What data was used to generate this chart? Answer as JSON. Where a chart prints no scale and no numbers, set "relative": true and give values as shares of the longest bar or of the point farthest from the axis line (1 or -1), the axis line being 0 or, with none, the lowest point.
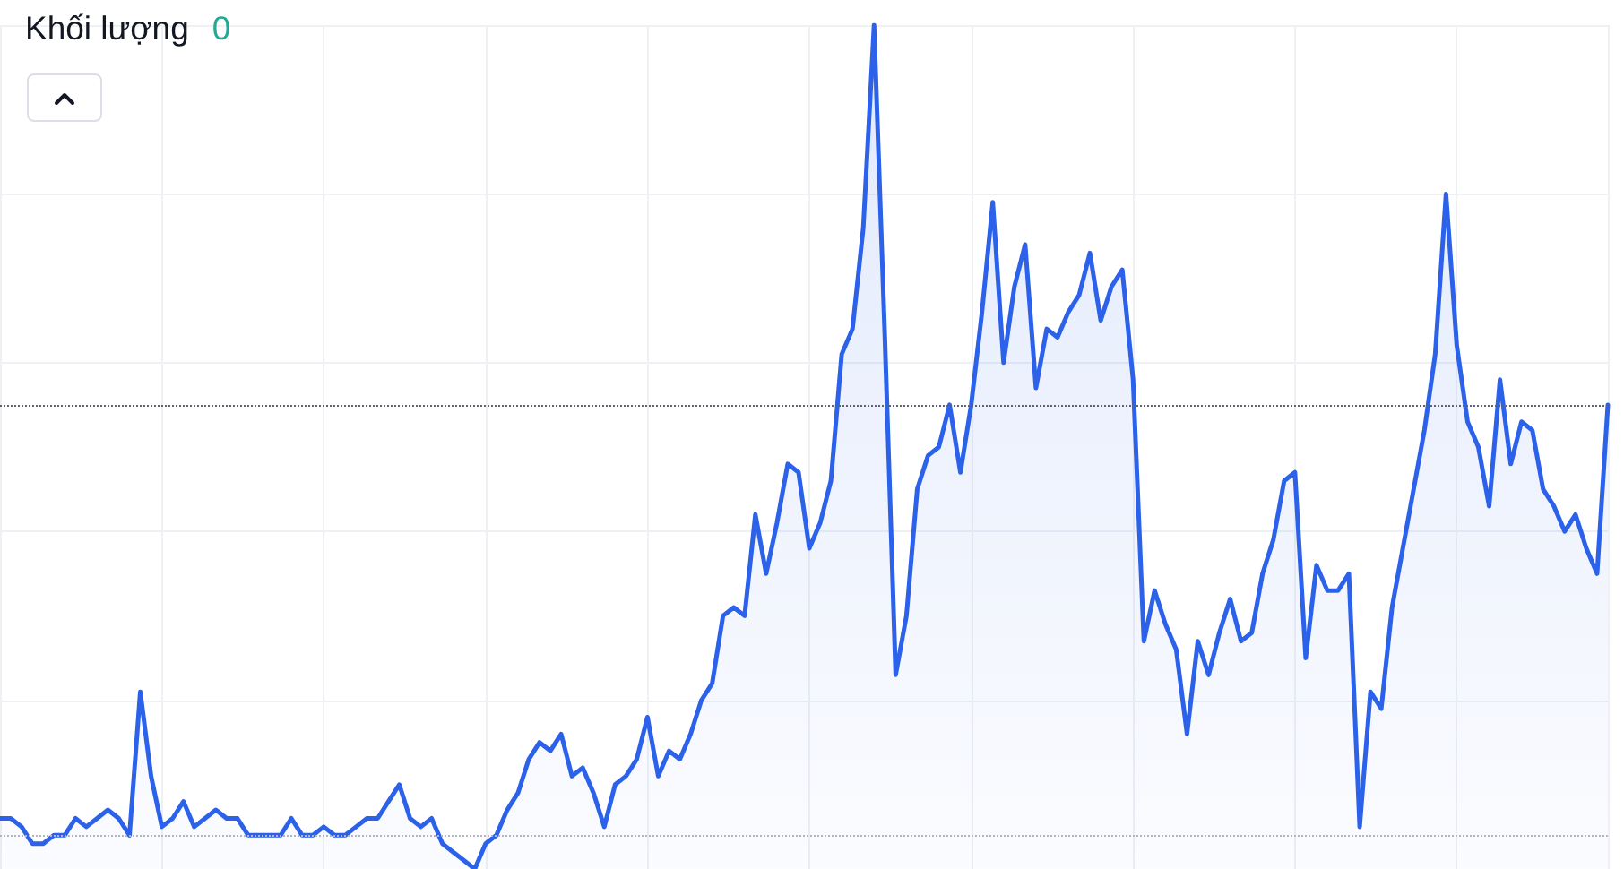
{
  "chart_data": {
    "type": "area",
    "relative": true,
    "categories": [
      null,
      null,
      null,
      null,
      null,
      null,
      null,
      null,
      null,
      null,
      null,
      null,
      null,
      null,
      null,
      null,
      null,
      null,
      null,
      null,
      null,
      null,
      null,
      null,
      null,
      null,
      null,
      null,
      null,
      null,
      null,
      null,
      null,
      null,
      null,
      null,
      null,
      null,
      null,
      null,
      null,
      null,
      null,
      null,
      null,
      null,
      null,
      null,
      null,
      null,
      null,
      null,
      null,
      null,
      null,
      null,
      null,
      null,
      null,
      null,
      null,
      null,
      null,
      null,
      null,
      null,
      null,
      null,
      null,
      null,
      null,
      null,
      null,
      null,
      null,
      null,
      null,
      null,
      null,
      null,
      null,
      null,
      null,
      null,
      null,
      null,
      null,
      null,
      null,
      null,
      null,
      null,
      null,
      null,
      null,
      null,
      null,
      null,
      null,
      null,
      null,
      null,
      null,
      null,
      null,
      null,
      null,
      null,
      null,
      null,
      null,
      null,
      null,
      null,
      null,
      null,
      null,
      null,
      null,
      null,
      null,
      null,
      null,
      null,
      null,
      null,
      null,
      null,
      null,
      null,
      null,
      null,
      null,
      null,
      null,
      null,
      null,
      null,
      null,
      null,
      null,
      null,
      null,
      null,
      null,
      null,
      null,
      null,
      null,
      null
    ],
    "values": [
      0.06,
      0.06,
      0.05,
      0.03,
      0.03,
      0.04,
      0.04,
      0.06,
      0.05,
      0.06,
      0.07,
      0.06,
      0.04,
      0.21,
      0.11,
      0.05,
      0.06,
      0.08,
      0.05,
      0.06,
      0.07,
      0.06,
      0.06,
      0.04,
      0.04,
      0.04,
      0.04,
      0.06,
      0.04,
      0.04,
      0.05,
      0.04,
      0.04,
      0.05,
      0.06,
      0.06,
      0.08,
      0.1,
      0.06,
      0.05,
      0.06,
      0.03,
      0.02,
      0.01,
      0,
      0.03,
      0.04,
      0.07,
      0.09,
      0.13,
      0.15,
      0.14,
      0.16,
      0.11,
      0.12,
      0.09,
      0.05,
      0.1,
      0.11,
      0.13,
      0.18,
      0.11,
      0.14,
      0.13,
      0.16,
      0.2,
      0.22,
      0.3,
      0.31,
      0.3,
      0.42,
      0.35,
      0.41,
      0.48,
      0.47,
      0.38,
      0.41,
      0.46,
      0.61,
      0.64,
      0.76,
      1,
      0.63,
      0.23,
      0.3,
      0.45,
      0.49,
      0.5,
      0.55,
      0.47,
      0.55,
      0.66,
      0.79,
      0.6,
      0.69,
      0.74,
      0.57,
      0.64,
      0.63,
      0.66,
      0.68,
      0.73,
      0.65,
      0.69,
      0.71,
      0.58,
      0.27,
      0.33,
      0.29,
      0.26,
      0.16,
      0.27,
      0.23,
      0.28,
      0.32,
      0.27,
      0.28,
      0.35,
      0.39,
      0.46,
      0.47,
      0.25,
      0.36,
      0.33,
      0.33,
      0.35,
      0.05,
      0.21,
      0.19,
      0.31,
      0.38,
      0.45,
      0.52,
      0.61,
      0.8,
      0.62,
      0.53,
      0.5,
      0.43,
      0.58,
      0.48,
      0.53,
      0.52,
      0.45,
      0.43,
      0.4,
      0.42,
      0.38,
      0.35,
      0.55
    ],
    "color": "#2c62ea",
    "grid": true,
    "line_style": "solid",
    "ref_lines": [
      {
        "axis": "y",
        "value": 0.55,
        "color": "#5d6273",
        "line_style": "dotted"
      },
      {
        "axis": "y",
        "value": 0.04,
        "color": "#b2b5be",
        "line_style": "dotted"
      }
    ],
    "annotations": [
      "Khối lượng",
      "0"
    ]
  }
}
